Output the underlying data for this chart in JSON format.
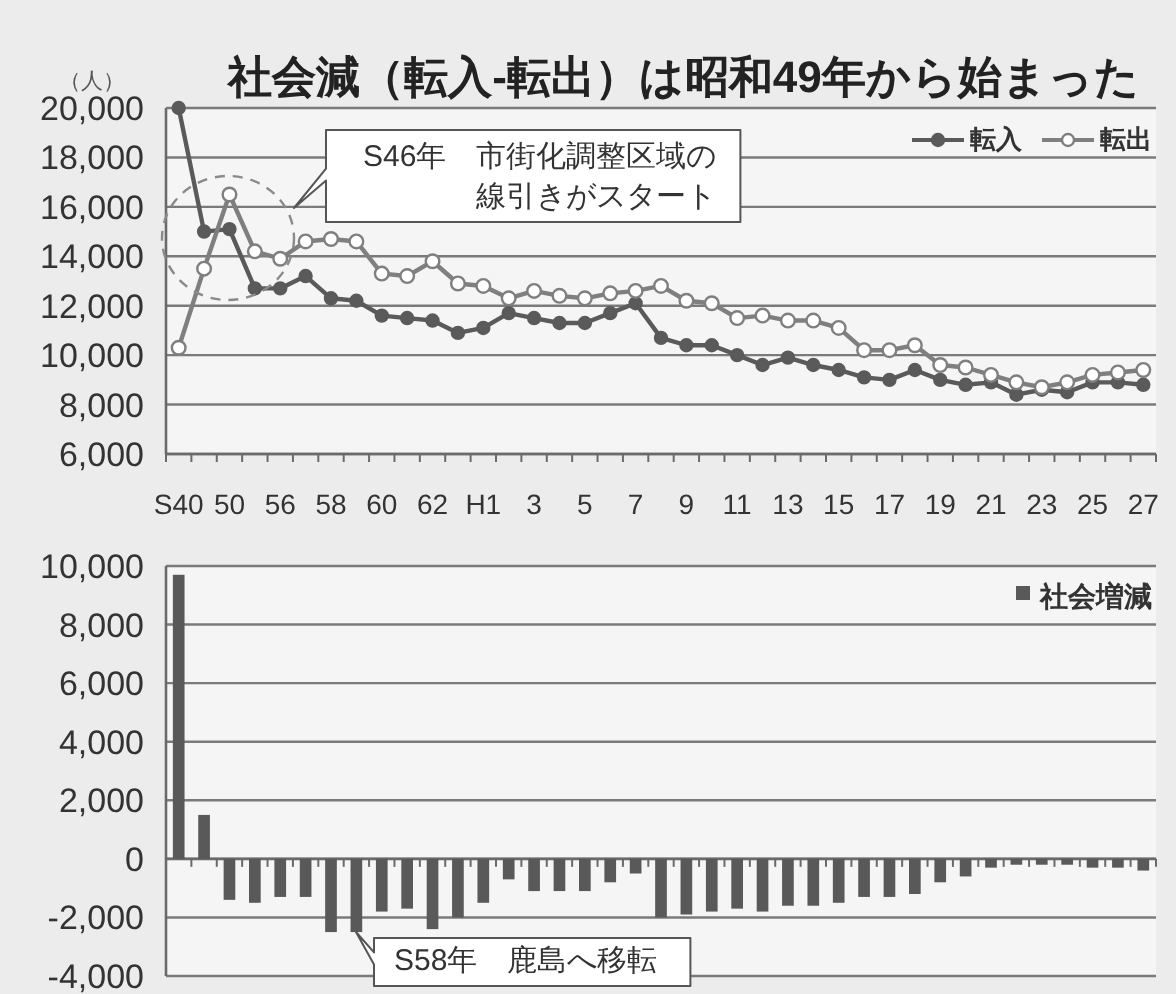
{
  "chart_data": [
    {
      "type": "line",
      "title": "社会減（転入-転出）は昭和49年から始まった",
      "ylabel": "（人）",
      "categories": [
        "S40",
        null,
        "50",
        null,
        "56",
        null,
        "58",
        null,
        "60",
        null,
        "62",
        null,
        "H1",
        null,
        "3",
        null,
        "5",
        null,
        "7",
        null,
        "9",
        null,
        "11",
        null,
        "13",
        null,
        "15",
        null,
        "17",
        null,
        "19",
        null,
        "21",
        null,
        "23",
        null,
        "25",
        null,
        "27"
      ],
      "series": [
        {
          "name": "転入",
          "color": "#5a5a5a",
          "values": [
            20000,
            15000,
            15100,
            12700,
            12700,
            13200,
            12300,
            12200,
            11600,
            11500,
            11400,
            10900,
            11100,
            11700,
            11500,
            11300,
            11300,
            11700,
            12100,
            10700,
            10400,
            10400,
            10000,
            9600,
            9900,
            9600,
            9400,
            9100,
            9000,
            9400,
            9000,
            8800,
            8900,
            8400,
            8600,
            8500,
            8900,
            8900,
            8800
          ]
        },
        {
          "name": "転出",
          "color": "#7f7f7f",
          "values": [
            10300,
            13500,
            16500,
            14200,
            13900,
            14600,
            14700,
            14600,
            13300,
            13200,
            13800,
            12900,
            12800,
            12300,
            12600,
            12400,
            12300,
            12500,
            12600,
            12800,
            12200,
            12100,
            11500,
            11600,
            11400,
            11400,
            11100,
            10200,
            10200,
            10400,
            9600,
            9500,
            9200,
            8900,
            8700,
            8900,
            9200,
            9300,
            9400
          ]
        }
      ],
      "ylim": [
        6000,
        20000
      ],
      "yticks": [
        {
          "value": 6000,
          "label": "6,000"
        },
        {
          "value": 8000,
          "label": "8,000"
        },
        {
          "value": 10000,
          "label": "10,000"
        },
        {
          "value": 12000,
          "label": "12,000"
        },
        {
          "value": 14000,
          "label": "14,000"
        },
        {
          "value": 16000,
          "label": "16,000"
        },
        {
          "value": 18000,
          "label": "18,000"
        },
        {
          "value": 20000,
          "label": "20,000"
        }
      ],
      "grid": "y",
      "legend": "top right",
      "marker": "circle",
      "annotations": [
        "S46年　市街化調整区域の線引きがスタート"
      ]
    },
    {
      "type": "bar",
      "categories": [
        null,
        null,
        null,
        null,
        null,
        null,
        null,
        null,
        null,
        null,
        null,
        null,
        null,
        null,
        null,
        null,
        null,
        null,
        null,
        null,
        null,
        null,
        null,
        null,
        null,
        null,
        null,
        null,
        null,
        null,
        null,
        null,
        null,
        null,
        null,
        null,
        null,
        null,
        null
      ],
      "series": [
        {
          "name": "社会増減",
          "color": "#595959",
          "values": [
            9700,
            1500,
            -1400,
            -1500,
            -1300,
            -1300,
            -2500,
            -2500,
            -1800,
            -1700,
            -2400,
            -2000,
            -1500,
            -700,
            -1100,
            -1100,
            -1100,
            -800,
            -500,
            -2000,
            -1900,
            -1800,
            -1700,
            -1800,
            -1600,
            -1600,
            -1500,
            -1300,
            -1300,
            -1200,
            -800,
            -600,
            -300,
            -200,
            -200,
            -200,
            -300,
            -300,
            -400
          ]
        }
      ],
      "ylim": [
        -4000,
        10000
      ],
      "yticks": [
        {
          "value": -4000,
          "label": "-4,000"
        },
        {
          "value": -2000,
          "label": "-2,000"
        },
        0,
        {
          "value": 2000,
          "label": "2,000"
        },
        {
          "value": 4000,
          "label": "4,000"
        },
        {
          "value": 6000,
          "label": "6,000"
        },
        {
          "value": 8000,
          "label": "8,000"
        },
        {
          "value": 10000,
          "label": "10,000"
        }
      ],
      "grid": "y",
      "legend": "top right",
      "tick_labels": "y",
      "annotations": [
        "S58年　鹿島へ移転"
      ]
    }
  ]
}
